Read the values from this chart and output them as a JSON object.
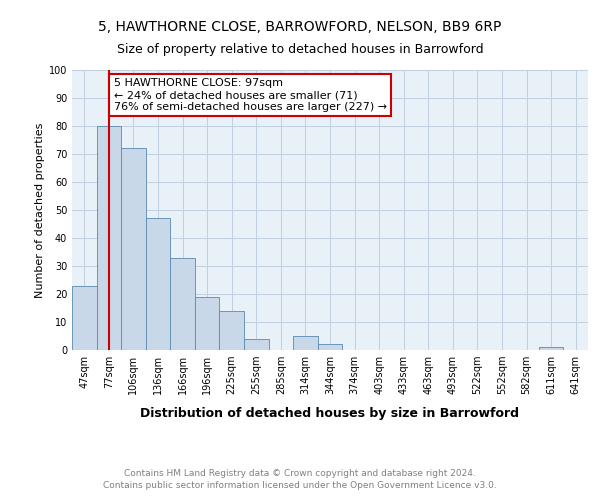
{
  "title": "5, HAWTHORNE CLOSE, BARROWFORD, NELSON, BB9 6RP",
  "subtitle": "Size of property relative to detached houses in Barrowford",
  "xlabel": "Distribution of detached houses by size in Barrowford",
  "ylabel": "Number of detached properties",
  "categories": [
    "47sqm",
    "77sqm",
    "106sqm",
    "136sqm",
    "166sqm",
    "196sqm",
    "225sqm",
    "255sqm",
    "285sqm",
    "314sqm",
    "344sqm",
    "374sqm",
    "403sqm",
    "433sqm",
    "463sqm",
    "493sqm",
    "522sqm",
    "552sqm",
    "582sqm",
    "611sqm",
    "641sqm"
  ],
  "values": [
    23,
    80,
    72,
    47,
    33,
    19,
    14,
    4,
    0,
    5,
    2,
    0,
    0,
    0,
    0,
    0,
    0,
    0,
    0,
    1,
    0
  ],
  "bar_color": "#c8d8e8",
  "bar_edge_color": "#5a8ab0",
  "vline_x": 1,
  "vline_color": "#cc0000",
  "annotation_text": "5 HAWTHORNE CLOSE: 97sqm\n← 24% of detached houses are smaller (71)\n76% of semi-detached houses are larger (227) →",
  "annotation_box_color": "#ffffff",
  "annotation_box_edge_color": "#cc0000",
  "ylim": [
    0,
    100
  ],
  "yticks": [
    0,
    10,
    20,
    30,
    40,
    50,
    60,
    70,
    80,
    90,
    100
  ],
  "grid_color": "#c0cfe0",
  "background_color": "#e8f0f8",
  "footer_text": "Contains HM Land Registry data © Crown copyright and database right 2024.\nContains public sector information licensed under the Open Government Licence v3.0.",
  "title_fontsize": 10,
  "subtitle_fontsize": 9,
  "xlabel_fontsize": 9,
  "ylabel_fontsize": 8,
  "tick_fontsize": 7,
  "annotation_fontsize": 8,
  "footer_fontsize": 6.5
}
